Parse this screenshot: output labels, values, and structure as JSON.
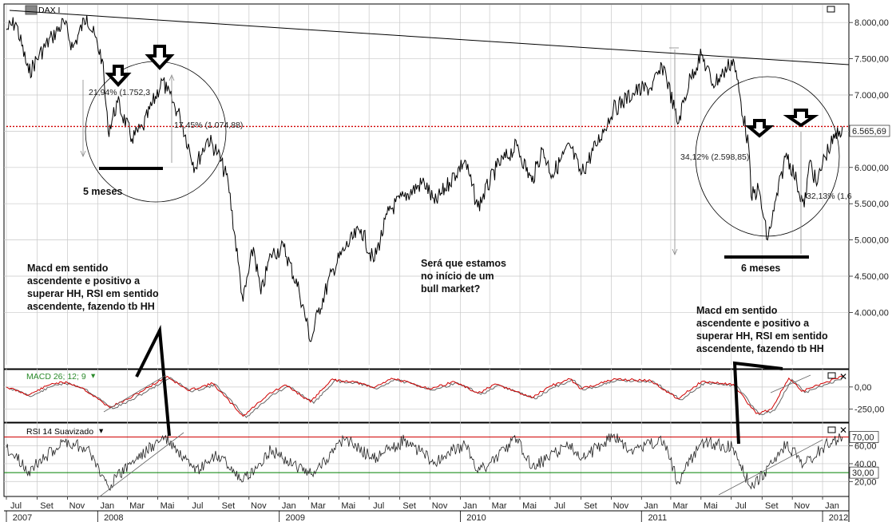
{
  "colors": {
    "price": "#000000",
    "macd": "#d00000",
    "signal": "#666666",
    "rsi": "#222222",
    "ob": "#d00000",
    "os": "#008000",
    "last": "#d00000",
    "grid": "#c8c8c8"
  },
  "main": {
    "title": "DAX I",
    "last_value_label": "6.565,69",
    "last_value": 6565.69
  },
  "chart_data": [
    {
      "type": "line",
      "title": "DAX I",
      "ylim": [
        3300,
        8200
      ],
      "y_tick_labels": [
        "8.000,00",
        "7.500,00",
        "7.000,00",
        "6.500,00",
        "6.000,00",
        "5.500,00",
        "5.000,00",
        "4.500,00",
        "4.000,00"
      ],
      "y_ticks": [
        8000,
        7500,
        7000,
        6500,
        6000,
        5500,
        5000,
        4500,
        4000
      ],
      "x_range": [
        "2007-07-01",
        "2012-02-15"
      ],
      "x_tick_labels": [
        "Jul",
        "Set",
        "Nov",
        "Jan",
        "Mar",
        "Mai",
        "Jul",
        "Set",
        "Nov",
        "Jan",
        "Mar",
        "Mai",
        "Jul",
        "Set",
        "Nov",
        "Jan",
        "Mar",
        "Mai",
        "Jul",
        "Set",
        "Nov",
        "Jan",
        "Mar",
        "Mai",
        "Jul",
        "Set",
        "Nov",
        "Jan"
      ],
      "x_tick_dates": [
        "2007-07-01",
        "2007-09-01",
        "2007-11-01",
        "2008-01-01",
        "2008-03-01",
        "2008-05-01",
        "2008-07-01",
        "2008-09-01",
        "2008-11-01",
        "2009-01-01",
        "2009-03-01",
        "2009-05-01",
        "2009-07-01",
        "2009-09-01",
        "2009-11-01",
        "2010-01-01",
        "2010-03-01",
        "2010-05-01",
        "2010-07-01",
        "2010-09-01",
        "2010-11-01",
        "2011-01-01",
        "2011-03-01",
        "2011-05-01",
        "2011-07-01",
        "2011-09-01",
        "2011-11-01",
        "2012-01-01"
      ],
      "year_labels": [
        "2007",
        "2008",
        "2009",
        "2010",
        "2011",
        "2012"
      ],
      "year_dates": [
        "2007-07-01",
        "2008-01-01",
        "2009-01-01",
        "2010-01-01",
        "2011-01-01",
        "2012-01-01"
      ],
      "series": [
        {
          "name": "DAX I",
          "points": [
            [
              "2007-07-01",
              7900
            ],
            [
              "2007-07-20",
              8000
            ],
            [
              "2007-08-15",
              7300
            ],
            [
              "2007-09-05",
              7550
            ],
            [
              "2007-10-01",
              7800
            ],
            [
              "2007-10-25",
              8000
            ],
            [
              "2007-11-12",
              7650
            ],
            [
              "2007-12-10",
              8100
            ],
            [
              "2008-01-10",
              7500
            ],
            [
              "2008-01-22",
              6500
            ],
            [
              "2008-02-10",
              6900
            ],
            [
              "2008-03-10",
              6400
            ],
            [
              "2008-04-01",
              6550
            ],
            [
              "2008-05-10",
              7200
            ],
            [
              "2008-05-20",
              7050
            ],
            [
              "2008-06-15",
              6700
            ],
            [
              "2008-07-15",
              6000
            ],
            [
              "2008-08-10",
              6400
            ],
            [
              "2008-08-30",
              6200
            ],
            [
              "2008-09-20",
              5800
            ],
            [
              "2008-10-10",
              4700
            ],
            [
              "2008-10-20",
              4150
            ],
            [
              "2008-11-10",
              4900
            ],
            [
              "2008-11-25",
              4250
            ],
            [
              "2008-12-15",
              4800
            ],
            [
              "2009-01-10",
              4900
            ],
            [
              "2009-02-10",
              4300
            ],
            [
              "2009-03-06",
              3600
            ],
            [
              "2009-03-20",
              4000
            ],
            [
              "2009-04-20",
              4600
            ],
            [
              "2009-05-15",
              4900
            ],
            [
              "2009-06-15",
              5150
            ],
            [
              "2009-07-10",
              4700
            ],
            [
              "2009-08-10",
              5400
            ],
            [
              "2009-09-10",
              5600
            ],
            [
              "2009-10-20",
              5800
            ],
            [
              "2009-11-10",
              5500
            ],
            [
              "2009-12-10",
              5800
            ],
            [
              "2010-01-10",
              6100
            ],
            [
              "2010-02-05",
              5450
            ],
            [
              "2010-03-15",
              6000
            ],
            [
              "2010-04-25",
              6300
            ],
            [
              "2010-05-25",
              5800
            ],
            [
              "2010-06-15",
              6250
            ],
            [
              "2010-07-05",
              5900
            ],
            [
              "2010-08-10",
              6300
            ],
            [
              "2010-09-01",
              5900
            ],
            [
              "2010-10-01",
              6300
            ],
            [
              "2010-11-05",
              6800
            ],
            [
              "2010-12-20",
              7050
            ],
            [
              "2011-01-20",
              7100
            ],
            [
              "2011-02-15",
              7400
            ],
            [
              "2011-03-15",
              6600
            ],
            [
              "2011-04-10",
              7250
            ],
            [
              "2011-05-02",
              7550
            ],
            [
              "2011-05-25",
              7150
            ],
            [
              "2011-06-15",
              7300
            ],
            [
              "2011-07-05",
              7500
            ],
            [
              "2011-08-05",
              6300
            ],
            [
              "2011-08-10",
              5600
            ],
            [
              "2011-08-25",
              5700
            ],
            [
              "2011-09-12",
              5000
            ],
            [
              "2011-09-25",
              5400
            ],
            [
              "2011-10-20",
              6200
            ],
            [
              "2011-11-10",
              5800
            ],
            [
              "2011-11-25",
              5450
            ],
            [
              "2011-12-07",
              6100
            ],
            [
              "2011-12-20",
              5750
            ],
            [
              "2012-01-05",
              6150
            ],
            [
              "2012-01-25",
              6400
            ],
            [
              "2012-02-10",
              6565.69
            ]
          ]
        }
      ]
    },
    {
      "type": "line",
      "title": "MACD 26; 12; 9",
      "ylim": [
        -380,
        170
      ],
      "y_tick_labels": [
        "0,00",
        "-250,00"
      ],
      "y_ticks": [
        0,
        -250
      ],
      "series": [
        {
          "name": "MACD",
          "points": [
            [
              "2007-07-01",
              0
            ],
            [
              "2007-08-15",
              -90
            ],
            [
              "2007-10-01",
              40
            ],
            [
              "2007-11-01",
              50
            ],
            [
              "2007-12-01",
              -10
            ],
            [
              "2008-01-25",
              -230
            ],
            [
              "2008-03-01",
              -140
            ],
            [
              "2008-05-20",
              120
            ],
            [
              "2008-07-01",
              -40
            ],
            [
              "2008-08-20",
              40
            ],
            [
              "2008-10-20",
              -330
            ],
            [
              "2008-12-10",
              -80
            ],
            [
              "2009-01-15",
              20
            ],
            [
              "2009-03-05",
              -170
            ],
            [
              "2009-04-15",
              80
            ],
            [
              "2009-06-01",
              60
            ],
            [
              "2009-07-10",
              -10
            ],
            [
              "2009-08-15",
              100
            ],
            [
              "2009-11-01",
              -20
            ],
            [
              "2009-12-20",
              60
            ],
            [
              "2010-02-05",
              -70
            ],
            [
              "2010-03-15",
              30
            ],
            [
              "2010-05-25",
              -120
            ],
            [
              "2010-07-01",
              10
            ],
            [
              "2010-08-10",
              90
            ],
            [
              "2010-09-01",
              -20
            ],
            [
              "2010-11-10",
              90
            ],
            [
              "2011-01-20",
              70
            ],
            [
              "2011-03-15",
              -130
            ],
            [
              "2011-05-02",
              60
            ],
            [
              "2011-07-05",
              30
            ],
            [
              "2011-08-20",
              -300
            ],
            [
              "2011-09-20",
              -250
            ],
            [
              "2011-10-25",
              100
            ],
            [
              "2011-11-20",
              -50
            ],
            [
              "2012-01-10",
              60
            ],
            [
              "2012-02-10",
              120
            ]
          ]
        }
      ]
    },
    {
      "type": "line",
      "title": "RSI 14 Suavizado",
      "ylim": [
        5,
        83
      ],
      "y_tick_labels": [
        "60,00",
        "40,00",
        "20,00"
      ],
      "y_ticks": [
        60,
        40,
        20
      ],
      "overbought": 70,
      "overbought_label": "70,00",
      "oversold": 30,
      "oversold_label": "30,00",
      "series": [
        {
          "name": "RSI 14",
          "points": [
            [
              "2007-07-01",
              58
            ],
            [
              "2007-08-15",
              32
            ],
            [
              "2007-10-25",
              65
            ],
            [
              "2007-12-10",
              58
            ],
            [
              "2008-01-22",
              15
            ],
            [
              "2008-03-10",
              42
            ],
            [
              "2008-05-15",
              70
            ],
            [
              "2008-07-15",
              30
            ],
            [
              "2008-09-01",
              50
            ],
            [
              "2008-10-20",
              20
            ],
            [
              "2008-12-15",
              55
            ],
            [
              "2009-03-06",
              28
            ],
            [
              "2009-05-15",
              68
            ],
            [
              "2009-07-10",
              45
            ],
            [
              "2009-09-10",
              66
            ],
            [
              "2009-11-10",
              42
            ],
            [
              "2010-01-10",
              62
            ],
            [
              "2010-02-05",
              30
            ],
            [
              "2010-04-25",
              68
            ],
            [
              "2010-05-25",
              35
            ],
            [
              "2010-08-10",
              62
            ],
            [
              "2010-09-01",
              44
            ],
            [
              "2010-11-05",
              72
            ],
            [
              "2010-12-10",
              55
            ],
            [
              "2011-02-15",
              66
            ],
            [
              "2011-03-15",
              20
            ],
            [
              "2011-05-02",
              65
            ],
            [
              "2011-07-05",
              58
            ],
            [
              "2011-08-10",
              12
            ],
            [
              "2011-09-25",
              42
            ],
            [
              "2011-10-20",
              62
            ],
            [
              "2011-11-25",
              40
            ],
            [
              "2012-01-05",
              60
            ],
            [
              "2012-02-10",
              70
            ]
          ]
        }
      ]
    }
  ],
  "annotations": {
    "circle_left_pct": "21,94% (1.752,3",
    "mid_pct": "17,45% (1.074,88)",
    "right_pct": "34,12% (2.598,85)",
    "far_right_pct": "32,13% (1,6",
    "five_months": "5 meses",
    "six_months": "6 meses",
    "text_left": [
      "Macd em sentido",
      "ascendente e positivo a",
      "superar HH, RSI em sentido",
      "ascendente, fazendo tb HH"
    ],
    "text_right": [
      "Macd em sentido",
      "ascendente e positivo a",
      "superar HH, RSI em sentido",
      "ascendente, fazendo tb HH"
    ],
    "text_center": [
      "Será que estamos",
      "no início de um",
      "bull market?"
    ]
  }
}
